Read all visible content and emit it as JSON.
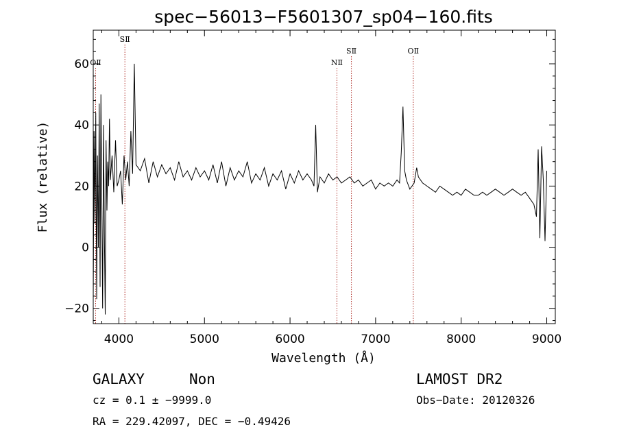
{
  "chart_data": {
    "type": "line",
    "title": "spec−56013−F5601307_sp04−160.fits",
    "xlabel": "Wavelength (Å)",
    "ylabel": "Flux (relative)",
    "xlim": [
      3700,
      9100
    ],
    "ylim": [
      -25,
      71
    ],
    "x_ticks": [
      4000,
      5000,
      6000,
      7000,
      8000,
      9000
    ],
    "x_tick_labels": [
      "4000",
      "5000",
      "6000",
      "7000",
      "8000",
      "9000"
    ],
    "y_ticks": [
      -20,
      0,
      20,
      40,
      60
    ],
    "y_tick_labels": [
      "−20",
      "0",
      "20",
      "40",
      "60"
    ],
    "grid": false,
    "series": [
      {
        "x": [
          3700,
          3710,
          3720,
          3730,
          3740,
          3750,
          3760,
          3770,
          3780,
          3790,
          3800,
          3810,
          3820,
          3830,
          3840,
          3850,
          3860,
          3870,
          3880,
          3890,
          3900,
          3920,
          3940,
          3960,
          3980,
          4000,
          4020,
          4040,
          4060,
          4080,
          4100,
          4120,
          4140,
          4160,
          4180,
          4200,
          4250,
          4300,
          4350,
          4400,
          4450,
          4500,
          4550,
          4600,
          4650,
          4700,
          4750,
          4800,
          4850,
          4900,
          4950,
          5000,
          5050,
          5100,
          5150,
          5200,
          5250,
          5300,
          5350,
          5400,
          5450,
          5500,
          5550,
          5600,
          5650,
          5700,
          5750,
          5800,
          5850,
          5900,
          5950,
          6000,
          6050,
          6100,
          6150,
          6200,
          6250,
          6280,
          6300,
          6320,
          6350,
          6400,
          6450,
          6500,
          6550,
          6600,
          6650,
          6700,
          6750,
          6800,
          6850,
          6900,
          6950,
          7000,
          7050,
          7100,
          7150,
          7200,
          7250,
          7280,
          7300,
          7320,
          7340,
          7360,
          7400,
          7450,
          7480,
          7500,
          7550,
          7600,
          7650,
          7700,
          7750,
          7800,
          7850,
          7900,
          7950,
          8000,
          8050,
          8100,
          8150,
          8200,
          8250,
          8300,
          8350,
          8400,
          8450,
          8500,
          8550,
          8600,
          8650,
          8700,
          8750,
          8800,
          8850,
          8880,
          8900,
          8920,
          8940,
          8960,
          8980,
          9000
        ],
        "y": [
          -18,
          38,
          8,
          44,
          -17,
          30,
          0,
          47,
          -13,
          50,
          15,
          -20,
          40,
          5,
          -22,
          35,
          12,
          28,
          20,
          42,
          22,
          30,
          18,
          35,
          20,
          22,
          25,
          14,
          30,
          22,
          28,
          20,
          38,
          24,
          60,
          27,
          25,
          29,
          21,
          28,
          23,
          27,
          24,
          26,
          22,
          28,
          23,
          25,
          22,
          26,
          23,
          25,
          22,
          27,
          21,
          28,
          20,
          26,
          22,
          25,
          23,
          28,
          21,
          24,
          22,
          26,
          20,
          24,
          22,
          25,
          19,
          24,
          21,
          25,
          22,
          24,
          22,
          20,
          40,
          18,
          23,
          21,
          24,
          22,
          23,
          21,
          22,
          23,
          21,
          22,
          20,
          21,
          22,
          19,
          21,
          20,
          21,
          20,
          22,
          21,
          31,
          46,
          25,
          22,
          19,
          21,
          26,
          23,
          21,
          20,
          19,
          18,
          20,
          19,
          18,
          17,
          18,
          17,
          19,
          18,
          17,
          17,
          18,
          17,
          18,
          19,
          18,
          17,
          18,
          19,
          18,
          17,
          18,
          16,
          14,
          10,
          32,
          3,
          33,
          22,
          2,
          25
        ]
      }
    ],
    "lines": [
      {
        "name": "OⅡ",
        "x": 3728
      },
      {
        "name": "SⅡ",
        "x": 4070
      },
      {
        "name": "NⅡ",
        "x": 6548
      },
      {
        "name": "SⅡ",
        "x": 6717
      },
      {
        "name": "OⅡ",
        "x": 7440
      }
    ]
  },
  "info": {
    "object_class": "GALAXY",
    "subclass": "Non",
    "cz_line": "cz = 0.1 ± −9999.0",
    "radec_line": "RA = 229.42097, DEC =  −0.49426",
    "survey": "LAMOST DR2",
    "obs_date": "Obs−Date: 20120326"
  }
}
